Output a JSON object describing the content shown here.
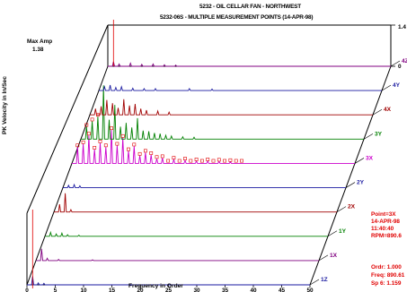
{
  "title_line1": "5232 - OIL CELLAR FAN - NORTHWEST",
  "title_line2": "5232-06S - MULTIPLE MEASUREMENT POINTS (14-APR-98)",
  "max_amp_label": "Max Amp",
  "max_amp_value": "1.38",
  "info": {
    "point": "Point=3X",
    "date": "14-APR-98",
    "time": "11:40:40",
    "rpm": "RPM=890.6",
    "ordr": "Ordr:   1.000",
    "freq": "Freq:   890.61",
    "spec": "Sp 6:   1.159"
  },
  "chart_data": {
    "type": "line",
    "title": "5232 - OIL CELLAR FAN - NORTHWEST / 5232-06S - MULTIPLE MEASUREMENT POINTS (14-APR-98)",
    "xlabel": "Frequency in Order",
    "ylabel": "PK Velocity in In/Sec",
    "xlim": [
      0,
      50
    ],
    "x_ticks": [
      0,
      5,
      10,
      15,
      20,
      25,
      30,
      35,
      40,
      45,
      50
    ],
    "z_axis_ticks": [
      "0",
      "1.4"
    ],
    "max_amp": 1.38,
    "series": [
      {
        "name": "1Z",
        "color": "#1a1aa0",
        "peaks": [
          [
            1,
            0.22
          ],
          [
            2,
            0.05
          ],
          [
            3,
            0.04
          ]
        ]
      },
      {
        "name": "1X",
        "color": "#800080",
        "peaks": [
          [
            1,
            0.3
          ],
          [
            2,
            0.06
          ],
          [
            4,
            0.03
          ],
          [
            10,
            0.02
          ]
        ]
      },
      {
        "name": "1Y",
        "color": "#008000",
        "peaks": [
          [
            1,
            0.1
          ],
          [
            2,
            0.06
          ],
          [
            3,
            0.08
          ],
          [
            4,
            0.04
          ],
          [
            6,
            0.03
          ]
        ]
      },
      {
        "name": "2X",
        "color": "#a00000",
        "peaks": [
          [
            1,
            0.2
          ],
          [
            2,
            0.48
          ],
          [
            3,
            0.06
          ]
        ]
      },
      {
        "name": "2Y",
        "color": "#1a1aa0",
        "peaks": [
          [
            1,
            0.06
          ],
          [
            2,
            0.08
          ],
          [
            3,
            0.05
          ]
        ]
      },
      {
        "name": "3X",
        "color": "#cc00cc",
        "peaks": [
          [
            1,
            0.42
          ],
          [
            2,
            0.5
          ],
          [
            3,
            0.72
          ],
          [
            4,
            0.36
          ],
          [
            5,
            0.52
          ],
          [
            6,
            0.42
          ],
          [
            7,
            0.86
          ],
          [
            8,
            0.46
          ],
          [
            9,
            0.66
          ],
          [
            10,
            0.32
          ],
          [
            11,
            0.44
          ],
          [
            12,
            0.2
          ],
          [
            13,
            0.28
          ],
          [
            14,
            0.22
          ],
          [
            15,
            0.12
          ],
          [
            16,
            0.14
          ],
          [
            18,
            0.1
          ],
          [
            20,
            0.08
          ],
          [
            22,
            0.06
          ],
          [
            24,
            0.06
          ],
          [
            26,
            0.05
          ],
          [
            28,
            0.04
          ]
        ]
      },
      {
        "name": "3Y",
        "color": "#008000",
        "peaks": [
          [
            1,
            0.32
          ],
          [
            2,
            0.46
          ],
          [
            3,
            0.58
          ],
          [
            4,
            1.38
          ],
          [
            5,
            0.5
          ],
          [
            6,
            0.88
          ],
          [
            7,
            0.32
          ],
          [
            8,
            0.42
          ],
          [
            9,
            0.3
          ],
          [
            10,
            0.54
          ],
          [
            11,
            0.22
          ],
          [
            12,
            0.2
          ],
          [
            13,
            0.16
          ],
          [
            14,
            0.14
          ],
          [
            15,
            0.1
          ],
          [
            16,
            0.08
          ],
          [
            18,
            0.06
          ],
          [
            20,
            0.05
          ]
        ]
      },
      {
        "name": "4X",
        "color": "#a00000",
        "peaks": [
          [
            1,
            0.16
          ],
          [
            2,
            0.22
          ],
          [
            3,
            0.38
          ],
          [
            4,
            0.3
          ],
          [
            5,
            0.18
          ],
          [
            6,
            0.4
          ],
          [
            7,
            0.24
          ],
          [
            8,
            0.28
          ],
          [
            9,
            0.16
          ],
          [
            10,
            0.12
          ],
          [
            12,
            0.1
          ],
          [
            14,
            0.07
          ]
        ]
      },
      {
        "name": "4Y",
        "color": "#1a1aa0",
        "peaks": [
          [
            1,
            0.1
          ],
          [
            2,
            0.14
          ],
          [
            3,
            0.08
          ],
          [
            4,
            0.1
          ],
          [
            6,
            0.06
          ],
          [
            8,
            0.05
          ],
          [
            10,
            0.05
          ],
          [
            16,
            0.05
          ],
          [
            20,
            0.04
          ]
        ]
      },
      {
        "name": "4Z",
        "color": "#800080",
        "peaks": [
          [
            1,
            0.12
          ],
          [
            2,
            0.06
          ],
          [
            4,
            0.08
          ],
          [
            6,
            0.05
          ],
          [
            8,
            0.06
          ],
          [
            10,
            0.04
          ],
          [
            12,
            0.03
          ]
        ]
      }
    ]
  }
}
